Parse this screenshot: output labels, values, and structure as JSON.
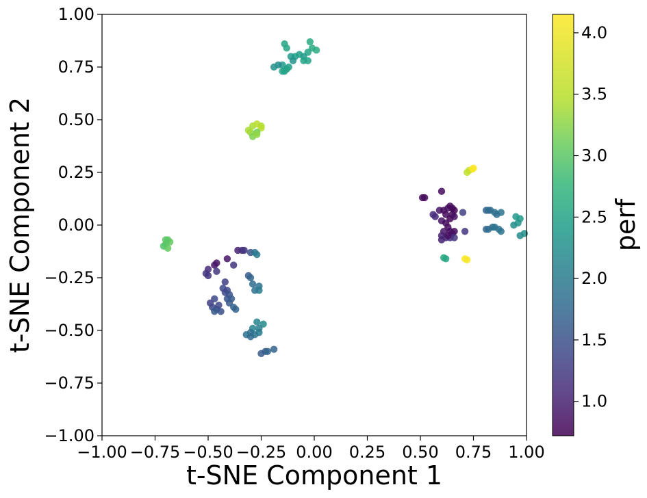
{
  "chart_data": {
    "type": "scatter",
    "title": "",
    "xlabel": "t-SNE Component 1",
    "ylabel": "t-SNE Component 2",
    "xlim": [
      -1.0,
      1.0
    ],
    "ylim": [
      -1.0,
      1.0
    ],
    "xticks": [
      "−1.00",
      "−0.75",
      "−0.50",
      "−0.25",
      "0.00",
      "0.25",
      "0.50",
      "0.75",
      "1.00"
    ],
    "yticks": [
      "−1.00",
      "−0.75",
      "−0.50",
      "−0.25",
      "0.00",
      "0.25",
      "0.50",
      "0.75",
      "1.00"
    ],
    "grid": false,
    "legend": "none",
    "colorbar": {
      "label": "perf",
      "colormap": "viridis",
      "range": [
        0.72,
        4.15
      ],
      "ticks": [
        "1.0",
        "1.5",
        "2.0",
        "2.5",
        "3.0",
        "3.5",
        "4.0"
      ]
    },
    "points": [
      {
        "x": -0.14,
        "y": 0.86,
        "c": 2.55
      },
      {
        "x": -0.13,
        "y": 0.84,
        "c": 2.55
      },
      {
        "x": -0.02,
        "y": 0.87,
        "c": 2.6
      },
      {
        "x": -0.01,
        "y": 0.84,
        "c": 2.6
      },
      {
        "x": 0.01,
        "y": 0.83,
        "c": 2.6
      },
      {
        "x": -0.03,
        "y": 0.82,
        "c": 2.5
      },
      {
        "x": -0.05,
        "y": 0.8,
        "c": 2.4
      },
      {
        "x": -0.07,
        "y": 0.81,
        "c": 2.45
      },
      {
        "x": -0.09,
        "y": 0.8,
        "c": 2.45
      },
      {
        "x": -0.11,
        "y": 0.8,
        "c": 2.4
      },
      {
        "x": -0.1,
        "y": 0.78,
        "c": 2.3
      },
      {
        "x": -0.05,
        "y": 0.78,
        "c": 2.5
      },
      {
        "x": -0.03,
        "y": 0.78,
        "c": 2.5
      },
      {
        "x": -0.12,
        "y": 0.75,
        "c": 2.45
      },
      {
        "x": -0.13,
        "y": 0.74,
        "c": 2.5
      },
      {
        "x": -0.14,
        "y": 0.73,
        "c": 2.5
      },
      {
        "x": -0.15,
        "y": 0.73,
        "c": 2.5
      },
      {
        "x": -0.15,
        "y": 0.76,
        "c": 2.4
      },
      {
        "x": -0.17,
        "y": 0.76,
        "c": 2.2
      },
      {
        "x": -0.19,
        "y": 0.75,
        "c": 2.3
      },
      {
        "x": -0.3,
        "y": 0.44,
        "c": 3.3
      },
      {
        "x": -0.29,
        "y": 0.47,
        "c": 3.4
      },
      {
        "x": -0.27,
        "y": 0.48,
        "c": 3.5
      },
      {
        "x": -0.25,
        "y": 0.47,
        "c": 3.45
      },
      {
        "x": -0.25,
        "y": 0.46,
        "c": 3.5
      },
      {
        "x": -0.27,
        "y": 0.44,
        "c": 3.1
      },
      {
        "x": -0.29,
        "y": 0.42,
        "c": 3.2
      },
      {
        "x": -0.27,
        "y": 0.43,
        "c": 3.3
      },
      {
        "x": -0.31,
        "y": 0.45,
        "c": 3.4
      },
      {
        "x": -0.69,
        "y": -0.07,
        "c": 3.0
      },
      {
        "x": -0.68,
        "y": -0.08,
        "c": 3.05
      },
      {
        "x": -0.7,
        "y": -0.09,
        "c": 3.0
      },
      {
        "x": -0.71,
        "y": -0.1,
        "c": 2.95
      },
      {
        "x": -0.69,
        "y": -0.11,
        "c": 3.05
      },
      {
        "x": -0.7,
        "y": -0.07,
        "c": 3.0
      },
      {
        "x": 0.73,
        "y": 0.26,
        "c": 3.6
      },
      {
        "x": 0.75,
        "y": 0.27,
        "c": 4.15
      },
      {
        "x": 0.745,
        "y": 0.265,
        "c": 4.1
      },
      {
        "x": 0.72,
        "y": 0.25,
        "c": 3.6
      },
      {
        "x": 0.71,
        "y": -0.16,
        "c": 4.15
      },
      {
        "x": 0.72,
        "y": -0.165,
        "c": 4.1
      },
      {
        "x": 0.61,
        "y": -0.155,
        "c": 2.6
      },
      {
        "x": 0.62,
        "y": -0.16,
        "c": 2.55
      },
      {
        "x": 0.51,
        "y": 0.13,
        "c": 0.8
      },
      {
        "x": 0.52,
        "y": 0.13,
        "c": 0.8
      },
      {
        "x": 0.6,
        "y": 0.16,
        "c": 0.8
      },
      {
        "x": 0.56,
        "y": 0.05,
        "c": 1.1
      },
      {
        "x": 0.57,
        "y": 0.04,
        "c": 1.1
      },
      {
        "x": 0.59,
        "y": 0.07,
        "c": 0.9
      },
      {
        "x": 0.61,
        "y": 0.07,
        "c": 0.8
      },
      {
        "x": 0.63,
        "y": 0.08,
        "c": 0.85
      },
      {
        "x": 0.64,
        "y": 0.09,
        "c": 0.8
      },
      {
        "x": 0.65,
        "y": 0.08,
        "c": 0.8
      },
      {
        "x": 0.66,
        "y": 0.07,
        "c": 0.75
      },
      {
        "x": 0.62,
        "y": 0.05,
        "c": 0.8
      },
      {
        "x": 0.64,
        "y": 0.03,
        "c": 0.75
      },
      {
        "x": 0.65,
        "y": 0.05,
        "c": 0.8
      },
      {
        "x": 0.66,
        "y": 0.04,
        "c": 0.85
      },
      {
        "x": 0.6,
        "y": 0.02,
        "c": 0.9
      },
      {
        "x": 0.62,
        "y": 0.01,
        "c": 0.8
      },
      {
        "x": 0.63,
        "y": -0.01,
        "c": 0.8
      },
      {
        "x": 0.64,
        "y": -0.03,
        "c": 0.8
      },
      {
        "x": 0.66,
        "y": -0.03,
        "c": 0.8
      },
      {
        "x": 0.65,
        "y": -0.04,
        "c": 0.85
      },
      {
        "x": 0.61,
        "y": -0.03,
        "c": 0.9
      },
      {
        "x": 0.6,
        "y": -0.05,
        "c": 1.0
      },
      {
        "x": 0.6,
        "y": -0.07,
        "c": 1.0
      },
      {
        "x": 0.62,
        "y": -0.06,
        "c": 1.05
      },
      {
        "x": 0.64,
        "y": -0.06,
        "c": 1.1
      },
      {
        "x": 0.66,
        "y": -0.06,
        "c": 1.2
      },
      {
        "x": 0.7,
        "y": 0.06,
        "c": 1.3
      },
      {
        "x": 0.71,
        "y": -0.03,
        "c": 1.2
      },
      {
        "x": 0.63,
        "y": -0.05,
        "c": 0.85
      },
      {
        "x": 0.81,
        "y": 0.07,
        "c": 1.7
      },
      {
        "x": 0.82,
        "y": 0.07,
        "c": 1.8
      },
      {
        "x": 0.83,
        "y": 0.07,
        "c": 1.8
      },
      {
        "x": 0.85,
        "y": 0.06,
        "c": 1.9
      },
      {
        "x": 0.86,
        "y": 0.05,
        "c": 1.8
      },
      {
        "x": 0.88,
        "y": 0.06,
        "c": 1.9
      },
      {
        "x": 0.81,
        "y": -0.02,
        "c": 1.7
      },
      {
        "x": 0.82,
        "y": -0.02,
        "c": 1.8
      },
      {
        "x": 0.84,
        "y": -0.01,
        "c": 1.8
      },
      {
        "x": 0.85,
        "y": -0.01,
        "c": 1.9
      },
      {
        "x": 0.87,
        "y": -0.02,
        "c": 1.9
      },
      {
        "x": 0.88,
        "y": -0.03,
        "c": 1.9
      },
      {
        "x": 0.95,
        "y": 0.04,
        "c": 2.35
      },
      {
        "x": 0.97,
        "y": 0.03,
        "c": 2.4
      },
      {
        "x": 0.94,
        "y": 0.0,
        "c": 2.2
      },
      {
        "x": 0.96,
        "y": 0.01,
        "c": 2.3
      },
      {
        "x": 0.99,
        "y": -0.04,
        "c": 2.3
      },
      {
        "x": 0.97,
        "y": -0.05,
        "c": 2.2
      },
      {
        "x": -0.36,
        "y": -0.12,
        "c": 1.0
      },
      {
        "x": -0.34,
        "y": -0.12,
        "c": 1.1
      },
      {
        "x": -0.33,
        "y": -0.12,
        "c": 1.2
      },
      {
        "x": -0.3,
        "y": -0.13,
        "c": 1.5
      },
      {
        "x": -0.28,
        "y": -0.13,
        "c": 1.9
      },
      {
        "x": -0.27,
        "y": -0.14,
        "c": 2.0
      },
      {
        "x": -0.41,
        "y": -0.16,
        "c": 0.9
      },
      {
        "x": -0.46,
        "y": -0.18,
        "c": 0.9
      },
      {
        "x": -0.47,
        "y": -0.19,
        "c": 0.9
      },
      {
        "x": -0.5,
        "y": -0.21,
        "c": 1.1
      },
      {
        "x": -0.51,
        "y": -0.23,
        "c": 1.2
      },
      {
        "x": -0.46,
        "y": -0.22,
        "c": 1.2
      },
      {
        "x": -0.5,
        "y": -0.24,
        "c": 1.2
      },
      {
        "x": -0.38,
        "y": -0.19,
        "c": 1.2
      },
      {
        "x": -0.31,
        "y": -0.24,
        "c": 1.6
      },
      {
        "x": -0.3,
        "y": -0.25,
        "c": 1.7
      },
      {
        "x": -0.29,
        "y": -0.28,
        "c": 1.8
      },
      {
        "x": -0.26,
        "y": -0.29,
        "c": 1.9
      },
      {
        "x": -0.28,
        "y": -0.31,
        "c": 1.9
      },
      {
        "x": -0.26,
        "y": -0.31,
        "c": 2.0
      },
      {
        "x": -0.42,
        "y": -0.27,
        "c": 1.3
      },
      {
        "x": -0.43,
        "y": -0.3,
        "c": 1.4
      },
      {
        "x": -0.42,
        "y": -0.32,
        "c": 1.4
      },
      {
        "x": -0.41,
        "y": -0.31,
        "c": 1.4
      },
      {
        "x": -0.4,
        "y": -0.33,
        "c": 1.5
      },
      {
        "x": -0.41,
        "y": -0.35,
        "c": 1.5
      },
      {
        "x": -0.39,
        "y": -0.35,
        "c": 1.6
      },
      {
        "x": -0.4,
        "y": -0.37,
        "c": 1.6
      },
      {
        "x": -0.38,
        "y": -0.39,
        "c": 1.7
      },
      {
        "x": -0.37,
        "y": -0.4,
        "c": 1.7
      },
      {
        "x": -0.47,
        "y": -0.35,
        "c": 1.4
      },
      {
        "x": -0.49,
        "y": -0.37,
        "c": 1.3
      },
      {
        "x": -0.48,
        "y": -0.39,
        "c": 1.4
      },
      {
        "x": -0.46,
        "y": -0.4,
        "c": 1.5
      },
      {
        "x": -0.45,
        "y": -0.38,
        "c": 1.4
      },
      {
        "x": -0.44,
        "y": -0.41,
        "c": 1.5
      },
      {
        "x": -0.47,
        "y": -0.41,
        "c": 1.6
      },
      {
        "x": -0.27,
        "y": -0.46,
        "c": 2.1
      },
      {
        "x": -0.24,
        "y": -0.47,
        "c": 2.2
      },
      {
        "x": -0.26,
        "y": -0.49,
        "c": 2.0
      },
      {
        "x": -0.29,
        "y": -0.49,
        "c": 2.1
      },
      {
        "x": -0.3,
        "y": -0.51,
        "c": 1.8
      },
      {
        "x": -0.32,
        "y": -0.52,
        "c": 1.9
      },
      {
        "x": -0.3,
        "y": -0.53,
        "c": 1.8
      },
      {
        "x": -0.28,
        "y": -0.52,
        "c": 1.9
      },
      {
        "x": -0.26,
        "y": -0.51,
        "c": 2.0
      },
      {
        "x": -0.25,
        "y": -0.61,
        "c": 1.6
      },
      {
        "x": -0.23,
        "y": -0.6,
        "c": 1.6
      },
      {
        "x": -0.22,
        "y": -0.6,
        "c": 1.7
      },
      {
        "x": -0.19,
        "y": -0.59,
        "c": 1.7
      }
    ]
  }
}
